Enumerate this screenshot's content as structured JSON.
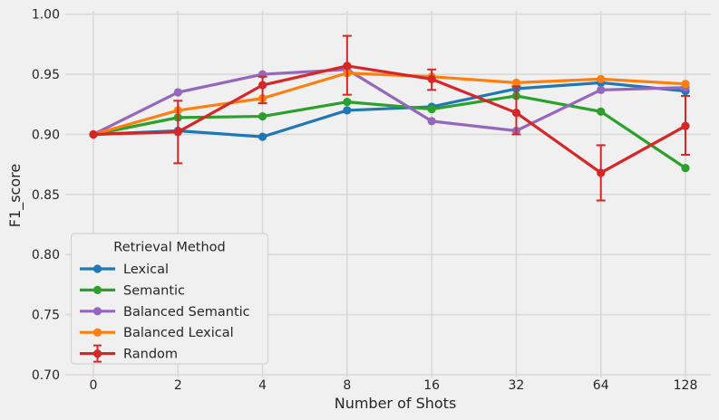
{
  "chart_data": {
    "type": "line",
    "title": "",
    "xlabel": "Number of Shots",
    "ylabel": "F1_score",
    "categories": [
      "0",
      "2",
      "4",
      "8",
      "16",
      "32",
      "64",
      "128"
    ],
    "y_ticks": [
      0.7,
      0.75,
      0.8,
      0.85,
      0.9,
      0.95,
      1.0
    ],
    "y_tick_labels": [
      "0.70",
      "0.75",
      "0.80",
      "0.85",
      "0.90",
      "0.95",
      "1.00"
    ],
    "ylim": [
      0.7,
      1.0
    ],
    "grid": true,
    "legend": {
      "title": "Retrieval Method",
      "position": "lower-left"
    },
    "series": [
      {
        "name": "Lexical",
        "color": "#1f77b4",
        "values": [
          0.9,
          0.903,
          0.898,
          0.92,
          0.923,
          0.938,
          0.943,
          0.936
        ]
      },
      {
        "name": "Semantic",
        "color": "#2ca02c",
        "values": [
          0.9,
          0.914,
          0.915,
          0.927,
          0.921,
          0.932,
          0.919,
          0.872
        ]
      },
      {
        "name": "Balanced Semantic",
        "color": "#9467bd",
        "values": [
          0.9,
          0.935,
          0.95,
          0.954,
          0.911,
          0.903,
          0.937,
          0.939
        ]
      },
      {
        "name": "Balanced Lexical",
        "color": "#ff7f0e",
        "values": [
          0.9,
          0.92,
          0.93,
          0.951,
          0.948,
          0.943,
          0.946,
          0.942
        ]
      },
      {
        "name": "Random",
        "color": "#d62728",
        "values": [
          0.9,
          0.902,
          0.941,
          0.957,
          0.946,
          0.918,
          0.868,
          0.907
        ],
        "error_low": [
          0.9,
          0.876,
          0.926,
          0.933,
          0.937,
          0.9,
          0.845,
          0.883
        ],
        "error_high": [
          0.9,
          0.928,
          0.948,
          0.982,
          0.954,
          0.94,
          0.891,
          0.932
        ]
      }
    ]
  },
  "colors": {
    "background": "#f0f0f0",
    "grid": "#d8d8d8",
    "text": "#262626",
    "legend_fill": "#f0f0f0",
    "legend_border": "#d3d3d3"
  }
}
